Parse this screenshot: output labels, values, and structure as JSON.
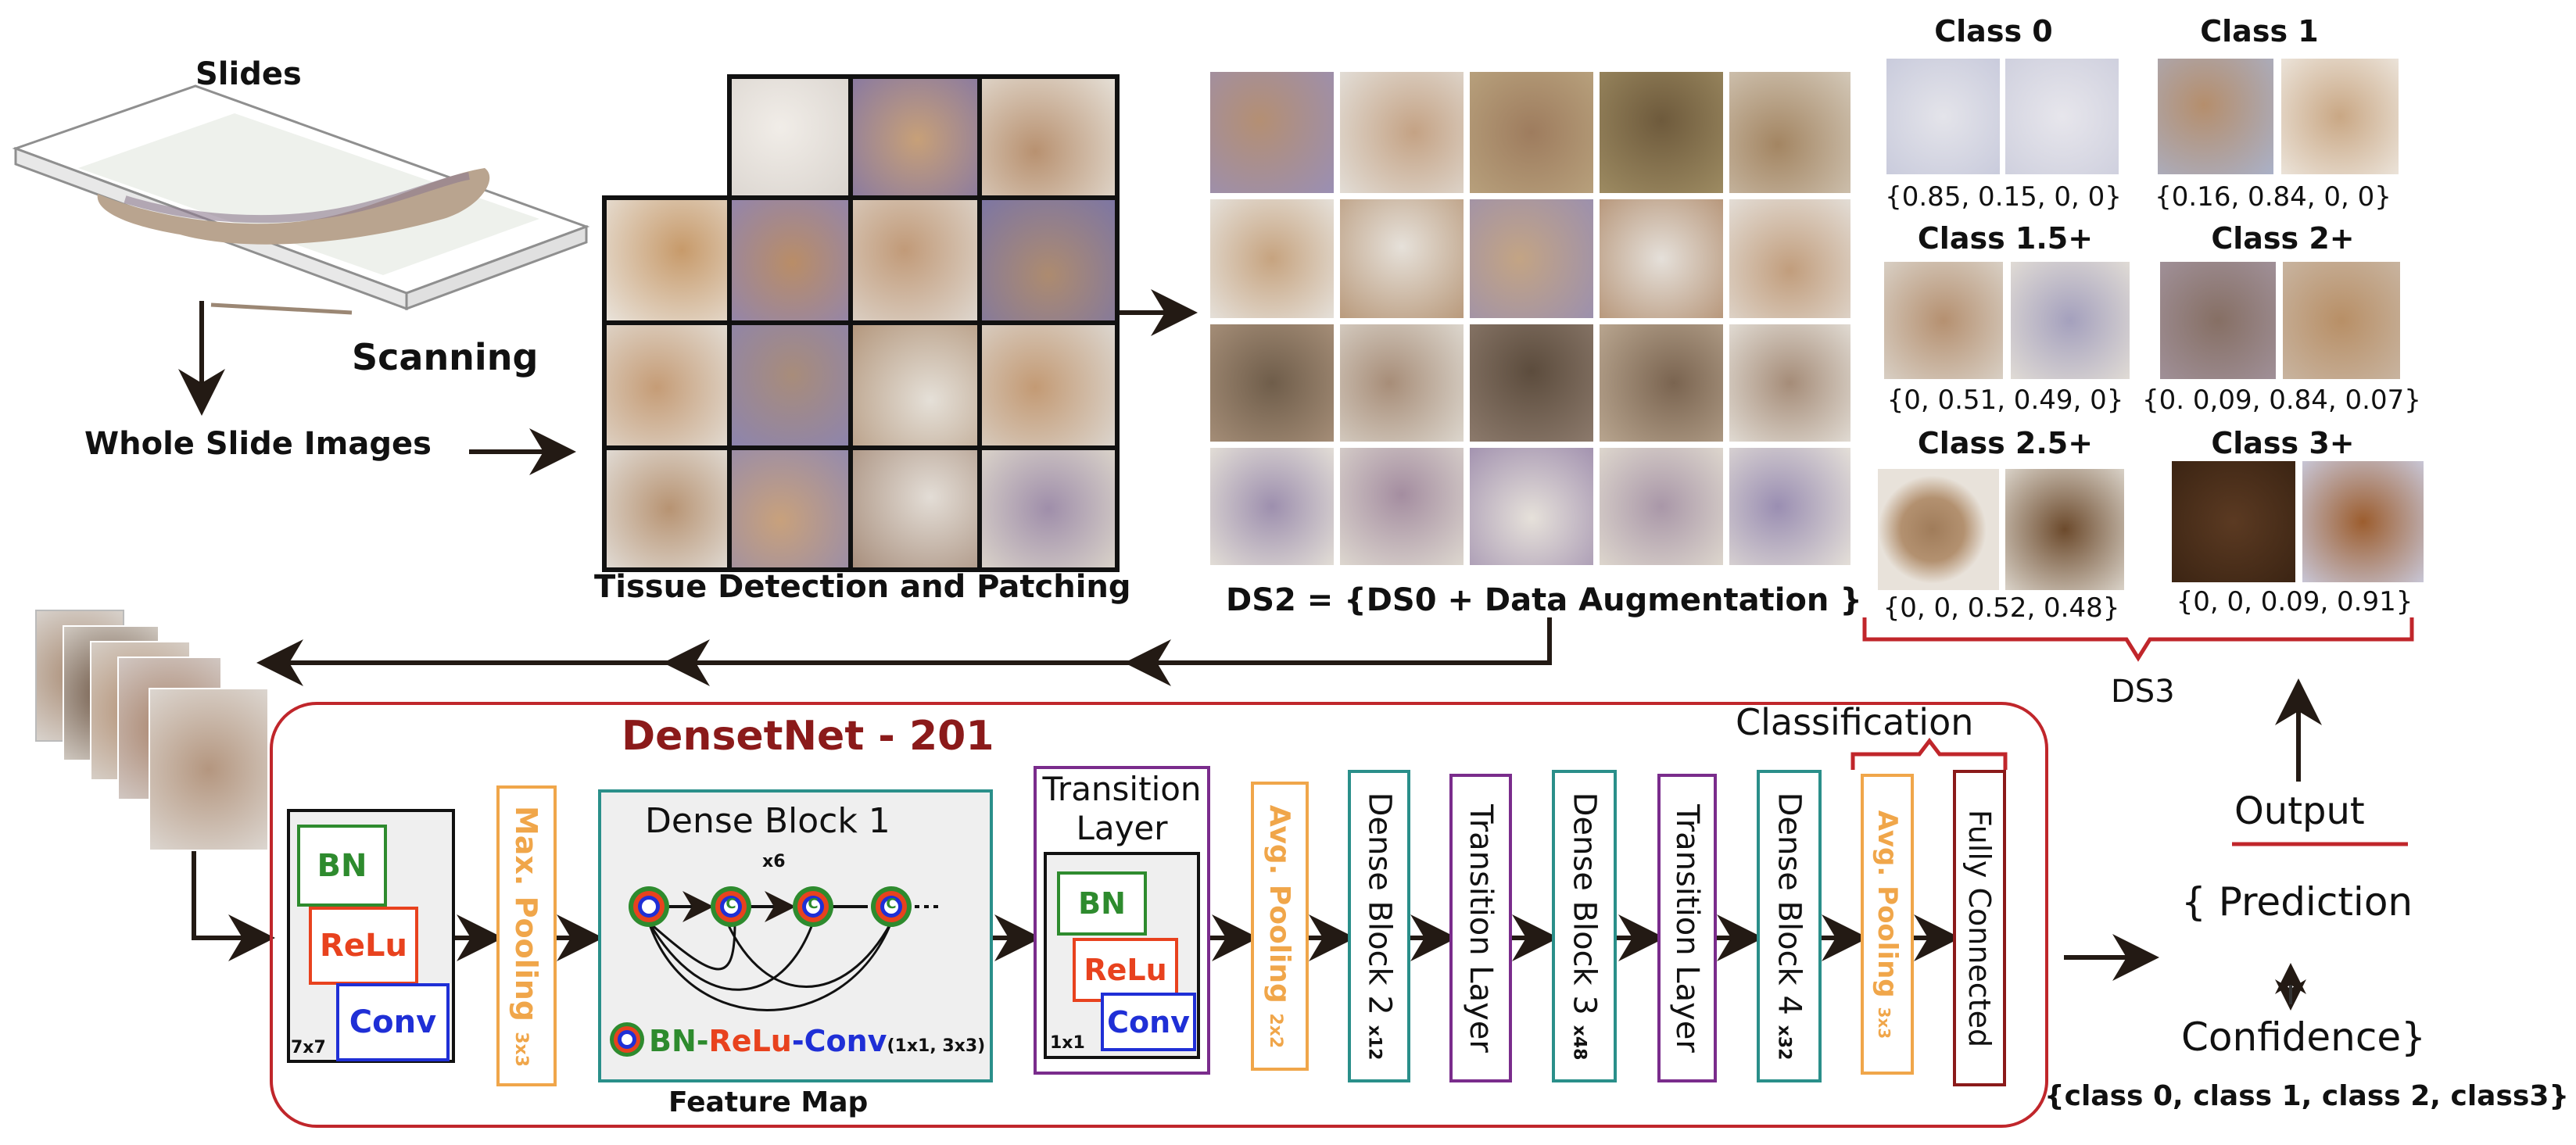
{
  "pipeline": {
    "slides_label": "Slides",
    "scanning_label": "Scanning",
    "wsi_label": "Whole Slide Images",
    "tissue_label": "Tissue Detection and Patching",
    "ds2_label": "DS2 = {DS0 + Data Augmentation }",
    "ds3_label": "DS3"
  },
  "classes": [
    {
      "name": "Class 0",
      "probs": "{0.85, 0.15, 0, 0}"
    },
    {
      "name": "Class 1",
      "probs": "{0.16, 0.84, 0, 0}"
    },
    {
      "name": "Class 1.5+",
      "probs": "{0, 0.51, 0.49, 0}"
    },
    {
      "name": "Class 2+",
      "probs": "{0. 0,09, 0.84, 0.07}"
    },
    {
      "name": "Class 2.5+",
      "probs": "{0, 0, 0.52, 0.48}"
    },
    {
      "name": "Class 3+",
      "probs": "{0, 0, 0.09, 0.91}"
    }
  ],
  "network": {
    "title": "DensetNet - 201",
    "classification_label": "Classification",
    "input_block": {
      "bn": "BN",
      "relu": "ReLu",
      "conv": "Conv",
      "size": "7x7"
    },
    "max_pooling": {
      "label": "Max. Pooling",
      "sub": "3x3"
    },
    "dense_block_1": {
      "title": "Dense Block 1",
      "mult": "x6",
      "node": "C",
      "legend_bn": "BN-",
      "legend_relu": "ReLu",
      "legend_conv": "-Conv",
      "legend_sub": "(1x1, 3x3)",
      "caption": "Feature Map"
    },
    "transition": {
      "title_line1": "Transition",
      "title_line2": "Layer",
      "bn": "BN",
      "relu": "ReLu",
      "conv": "Conv",
      "size": "1x1"
    },
    "avg_pooling_1": {
      "label": "Avg. Pooling",
      "sub": "2x2"
    },
    "dense_block_2": {
      "label": "Dense Block 2",
      "sub": "x12"
    },
    "transition_2": {
      "label": "Transition Layer"
    },
    "dense_block_3": {
      "label": "Dense Block 3",
      "sub": "x48"
    },
    "transition_3": {
      "label": "Transition Layer"
    },
    "dense_block_4": {
      "label": "Dense Block 4",
      "sub": "x32"
    },
    "avg_pooling_2": {
      "label": "Avg. Pooling",
      "sub": "3x3"
    },
    "fully_connected": {
      "label": "Fully Connected"
    }
  },
  "output": {
    "title": "Output",
    "prediction": "{ Prediction",
    "confidence": "Confidence}",
    "classes_line": "{class 0, class 1, class 2, class3}"
  },
  "colors": {
    "dark_red": "#8b1a1a",
    "red_line": "#c0262b",
    "orange": "#f0a64a",
    "teal": "#2a8f8a",
    "purple": "#7a2c8c",
    "bn_green": "#2e8b2e",
    "relu_red": "#e8421e",
    "conv_blue": "#1f2fd6"
  }
}
